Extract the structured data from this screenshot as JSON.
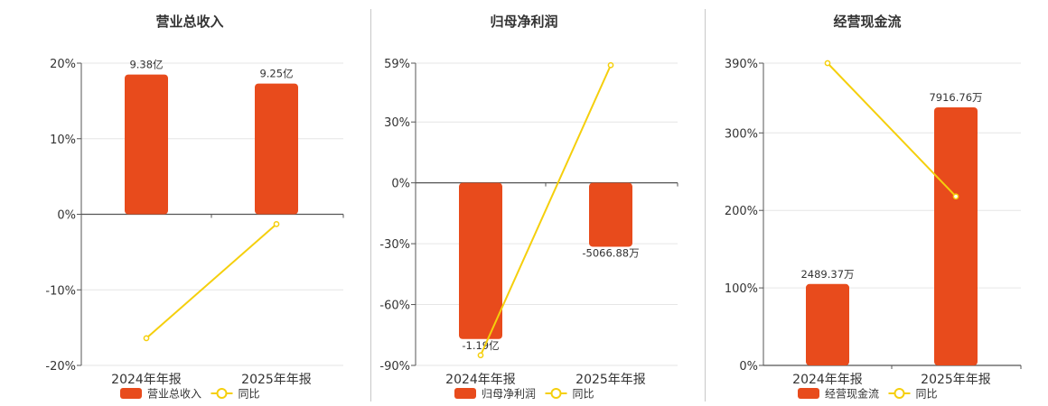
{
  "colors": {
    "bar": "#e84b1c",
    "line": "#f5cf0c",
    "grid": "#e6e6e6",
    "axis": "#555555"
  },
  "chart_data": [
    {
      "type": "bar",
      "title": "营业总收入",
      "categories": [
        "2024年年报",
        "2025年年报"
      ],
      "bar_values": [
        9.38,
        9.25
      ],
      "bar_display": [
        18.5,
        17.3
      ],
      "bar_labels": [
        "9.38亿",
        "9.25亿"
      ],
      "line_values": [
        -16.4,
        -1.3
      ],
      "ylim": [
        -20,
        20
      ],
      "yticks": [
        20,
        10,
        0,
        -10,
        -20
      ],
      "ytick_labels": [
        "20%",
        "10%",
        "0%",
        "-10%",
        "-20%"
      ],
      "legend": [
        "营业总收入",
        "同比"
      ]
    },
    {
      "type": "bar",
      "title": "归母净利润",
      "categories": [
        "2024年年报",
        "2025年年报"
      ],
      "bar_values": [
        -1.19,
        -0.506688
      ],
      "bar_display": [
        -77,
        -31.5
      ],
      "bar_labels": [
        "-1.19亿",
        "-5066.88万"
      ],
      "line_values": [
        -85,
        58
      ],
      "ylim": [
        -90,
        59
      ],
      "yticks": [
        59,
        30,
        0,
        -30,
        -60,
        -90
      ],
      "ytick_labels": [
        "59%",
        "30%",
        "0%",
        "-30%",
        "-60%",
        "-90%"
      ],
      "legend": [
        "归母净利润",
        "同比"
      ]
    },
    {
      "type": "bar",
      "title": "经营现金流",
      "categories": [
        "2024年年报",
        "2025年年报"
      ],
      "bar_values": [
        0.248937,
        0.791676
      ],
      "bar_display": [
        105,
        333
      ],
      "bar_labels": [
        "2489.37万",
        "7916.76万"
      ],
      "line_values": [
        390,
        218
      ],
      "ylim": [
        0,
        390
      ],
      "yticks": [
        390,
        300,
        200,
        100,
        0
      ],
      "ytick_labels": [
        "390%",
        "300%",
        "200%",
        "100%",
        "0%"
      ],
      "legend": [
        "经营现金流",
        "同比"
      ]
    }
  ]
}
